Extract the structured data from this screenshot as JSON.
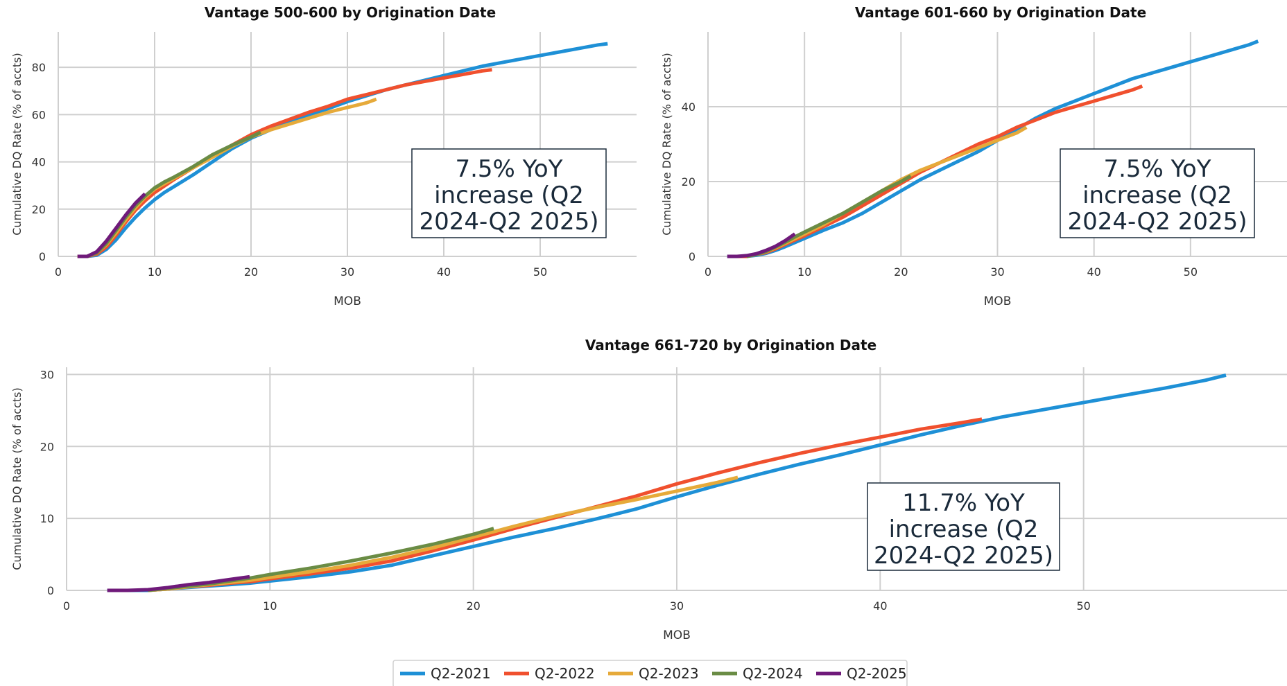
{
  "colors": {
    "Q2-2021": "#1e90d6",
    "Q2-2022": "#f0502e",
    "Q2-2023": "#e6aa3a",
    "Q2-2024": "#6a8c45",
    "Q2-2025": "#6f1a7a"
  },
  "legend": [
    "Q2-2021",
    "Q2-2022",
    "Q2-2023",
    "Q2-2024",
    "Q2-2025"
  ],
  "chart_data": [
    {
      "type": "line",
      "title": "Vantage 500-600 by Origination Date",
      "xlabel": "MOB",
      "ylabel": "Cumulative DQ Rate (% of accts)",
      "xlim": [
        0,
        60
      ],
      "ylim": [
        0,
        95
      ],
      "xticks": [
        0,
        10,
        20,
        30,
        40,
        50
      ],
      "yticks": [
        0,
        20,
        40,
        60,
        80
      ],
      "grid": true,
      "annotation": [
        "7.5% YoY",
        "increase (Q2",
        "2024-Q2 2025)"
      ],
      "series": [
        {
          "name": "Q2-2021",
          "x": [
            2,
            3,
            4,
            5,
            6,
            7,
            8,
            9,
            10,
            11,
            12,
            14,
            16,
            18,
            20,
            22,
            24,
            26,
            28,
            30,
            32,
            34,
            36,
            38,
            40,
            42,
            44,
            46,
            48,
            50,
            52,
            54,
            56,
            57
          ],
          "y": [
            0,
            0,
            0.5,
            3,
            7,
            12,
            16.5,
            20.5,
            24,
            27,
            29.5,
            34.5,
            40,
            45.5,
            50,
            53.5,
            57,
            60,
            62.5,
            65.5,
            68,
            70.5,
            72.5,
            74.5,
            76.5,
            78.5,
            80.5,
            82,
            83.5,
            85,
            86.5,
            88,
            89.5,
            90
          ]
        },
        {
          "name": "Q2-2022",
          "x": [
            2,
            3,
            4,
            5,
            6,
            7,
            8,
            9,
            10,
            12,
            14,
            16,
            18,
            20,
            22,
            24,
            26,
            28,
            30,
            32,
            34,
            36,
            38,
            40,
            42,
            44,
            45
          ],
          "y": [
            0,
            0,
            1,
            4,
            9,
            14.5,
            19.5,
            23.5,
            27,
            32.5,
            37.5,
            42.5,
            47,
            51.5,
            55,
            58,
            61,
            63.5,
            66.5,
            68.5,
            70.5,
            72.5,
            74,
            75.5,
            77,
            78.5,
            79
          ]
        },
        {
          "name": "Q2-2023",
          "x": [
            2,
            3,
            4,
            5,
            6,
            7,
            8,
            9,
            10,
            12,
            14,
            16,
            18,
            20,
            22,
            24,
            26,
            28,
            30,
            32,
            33
          ],
          "y": [
            0,
            0,
            1.5,
            5,
            10,
            15.5,
            20.5,
            25,
            28.5,
            33,
            37.5,
            42,
            46.5,
            50.5,
            53.5,
            56,
            58.5,
            61,
            63,
            65,
            66.5
          ]
        },
        {
          "name": "Q2-2024",
          "x": [
            3,
            4,
            5,
            6,
            7,
            8,
            9,
            10,
            11,
            12,
            14,
            16,
            18,
            20,
            21
          ],
          "y": [
            0,
            1.5,
            5.5,
            11,
            16.5,
            21.5,
            25.5,
            29,
            31.5,
            33.5,
            38,
            43,
            47,
            50.5,
            52.5
          ]
        },
        {
          "name": "Q2-2025",
          "x": [
            2,
            3,
            4,
            5,
            6,
            7,
            8,
            9
          ],
          "y": [
            0,
            0,
            2,
            6.5,
            12,
            17.5,
            22.5,
            26.5
          ]
        }
      ]
    },
    {
      "type": "line",
      "title": "Vantage 601-660 by Origination Date",
      "xlabel": "MOB",
      "ylabel": "Cumulative DQ Rate (% of accts)",
      "xlim": [
        0,
        60
      ],
      "ylim": [
        0,
        60
      ],
      "xticks": [
        0,
        10,
        20,
        30,
        40,
        50
      ],
      "yticks": [
        0,
        20,
        40
      ],
      "grid": true,
      "annotation": [
        "7.5% YoY",
        "increase (Q2",
        "2024-Q2 2025)"
      ],
      "series": [
        {
          "name": "Q2-2021",
          "x": [
            2,
            3,
            4,
            5,
            6,
            7,
            8,
            10,
            12,
            14,
            16,
            18,
            20,
            22,
            24,
            26,
            28,
            30,
            32,
            34,
            36,
            38,
            40,
            42,
            44,
            46,
            48,
            50,
            52,
            54,
            56,
            57
          ],
          "y": [
            0,
            0,
            0,
            0.3,
            0.8,
            1.6,
            2.6,
            4.8,
            7,
            9,
            11.5,
            14.5,
            17.5,
            20.5,
            23,
            25.5,
            28,
            31,
            34,
            37,
            39.5,
            41.5,
            43.5,
            45.5,
            47.5,
            49,
            50.5,
            52,
            53.5,
            55,
            56.5,
            57.5
          ]
        },
        {
          "name": "Q2-2022",
          "x": [
            3,
            4,
            5,
            6,
            7,
            8,
            10,
            12,
            14,
            16,
            18,
            20,
            22,
            24,
            26,
            28,
            30,
            32,
            34,
            36,
            38,
            40,
            42,
            44,
            45
          ],
          "y": [
            0,
            0,
            0.5,
            1,
            2,
            3.2,
            5.5,
            8,
            10.5,
            13.5,
            16.5,
            19.5,
            22.5,
            25,
            27.5,
            30,
            32,
            34.5,
            36.5,
            38.5,
            40,
            41.5,
            43,
            44.5,
            45.5
          ]
        },
        {
          "name": "Q2-2023",
          "x": [
            4,
            5,
            6,
            7,
            8,
            10,
            12,
            14,
            16,
            18,
            20,
            22,
            24,
            26,
            28,
            30,
            32,
            33
          ],
          "y": [
            0,
            0.5,
            1.2,
            2.3,
            3.5,
            6,
            8.5,
            11.5,
            14.5,
            17.5,
            20.5,
            23,
            25,
            27,
            29,
            31,
            33,
            34.5
          ]
        },
        {
          "name": "Q2-2024",
          "x": [
            4,
            5,
            6,
            7,
            8,
            9,
            10,
            12,
            14,
            16,
            18,
            20,
            21
          ],
          "y": [
            0,
            0.5,
            1.3,
            2.5,
            3.8,
            5.2,
            6.5,
            9,
            11.5,
            14.5,
            17.5,
            20,
            21.5
          ]
        },
        {
          "name": "Q2-2025",
          "x": [
            2,
            3,
            4,
            5,
            6,
            7,
            8,
            9
          ],
          "y": [
            0,
            0,
            0.2,
            0.7,
            1.6,
            2.7,
            4.2,
            6
          ]
        }
      ]
    },
    {
      "type": "line",
      "title": "Vantage 661-720 by Origination Date",
      "xlabel": "MOB",
      "ylabel": "Cumulative DQ Rate (% of accts)",
      "xlim": [
        0,
        60
      ],
      "ylim": [
        0,
        31
      ],
      "xticks": [
        0,
        10,
        20,
        30,
        40,
        50
      ],
      "yticks": [
        0,
        10,
        20,
        30
      ],
      "grid": true,
      "annotation": [
        "11.7% YoY",
        "increase (Q2",
        "2024-Q2 2025)"
      ],
      "series": [
        {
          "name": "Q2-2021",
          "x": [
            2,
            3,
            4,
            5,
            6,
            7,
            8,
            9,
            10,
            12,
            14,
            16,
            18,
            20,
            22,
            24,
            26,
            28,
            30,
            32,
            34,
            36,
            38,
            40,
            42,
            44,
            46,
            48,
            50,
            52,
            54,
            56,
            57
          ],
          "y": [
            0,
            0,
            0,
            0.2,
            0.4,
            0.6,
            0.8,
            1,
            1.3,
            1.9,
            2.6,
            3.5,
            4.8,
            6.1,
            7.4,
            8.6,
            9.9,
            11.3,
            13,
            14.6,
            16.1,
            17.5,
            18.8,
            20.2,
            21.6,
            22.9,
            24.1,
            25.1,
            26.1,
            27.1,
            28.1,
            29.2,
            29.9
          ]
        },
        {
          "name": "Q2-2022",
          "x": [
            4,
            5,
            6,
            7,
            8,
            9,
            10,
            12,
            14,
            16,
            18,
            20,
            22,
            24,
            26,
            28,
            30,
            32,
            34,
            36,
            38,
            40,
            42,
            44,
            45
          ],
          "y": [
            0,
            0.2,
            0.5,
            0.7,
            1,
            1.2,
            1.6,
            2.3,
            3.1,
            4.1,
            5.5,
            7,
            8.6,
            10.1,
            11.6,
            13.1,
            14.8,
            16.3,
            17.7,
            19,
            20.2,
            21.3,
            22.4,
            23.3,
            23.8
          ]
        },
        {
          "name": "Q2-2023",
          "x": [
            4,
            5,
            6,
            7,
            8,
            9,
            10,
            12,
            14,
            16,
            18,
            20,
            22,
            24,
            26,
            28,
            30,
            32,
            33
          ],
          "y": [
            0,
            0.2,
            0.5,
            0.8,
            1.1,
            1.4,
            1.8,
            2.6,
            3.5,
            4.6,
            5.9,
            7.4,
            8.9,
            10.3,
            11.5,
            12.6,
            13.8,
            15,
            15.7
          ]
        },
        {
          "name": "Q2-2024",
          "x": [
            4,
            5,
            6,
            7,
            8,
            9,
            10,
            12,
            14,
            16,
            18,
            20,
            21
          ],
          "y": [
            0,
            0.3,
            0.6,
            0.9,
            1.3,
            1.7,
            2.2,
            3.1,
            4.1,
            5.2,
            6.4,
            7.8,
            8.6
          ]
        },
        {
          "name": "Q2-2025",
          "x": [
            2,
            3,
            4,
            5,
            6,
            7,
            8,
            9
          ],
          "y": [
            0,
            0,
            0.1,
            0.4,
            0.8,
            1.1,
            1.5,
            1.9
          ]
        }
      ]
    }
  ]
}
